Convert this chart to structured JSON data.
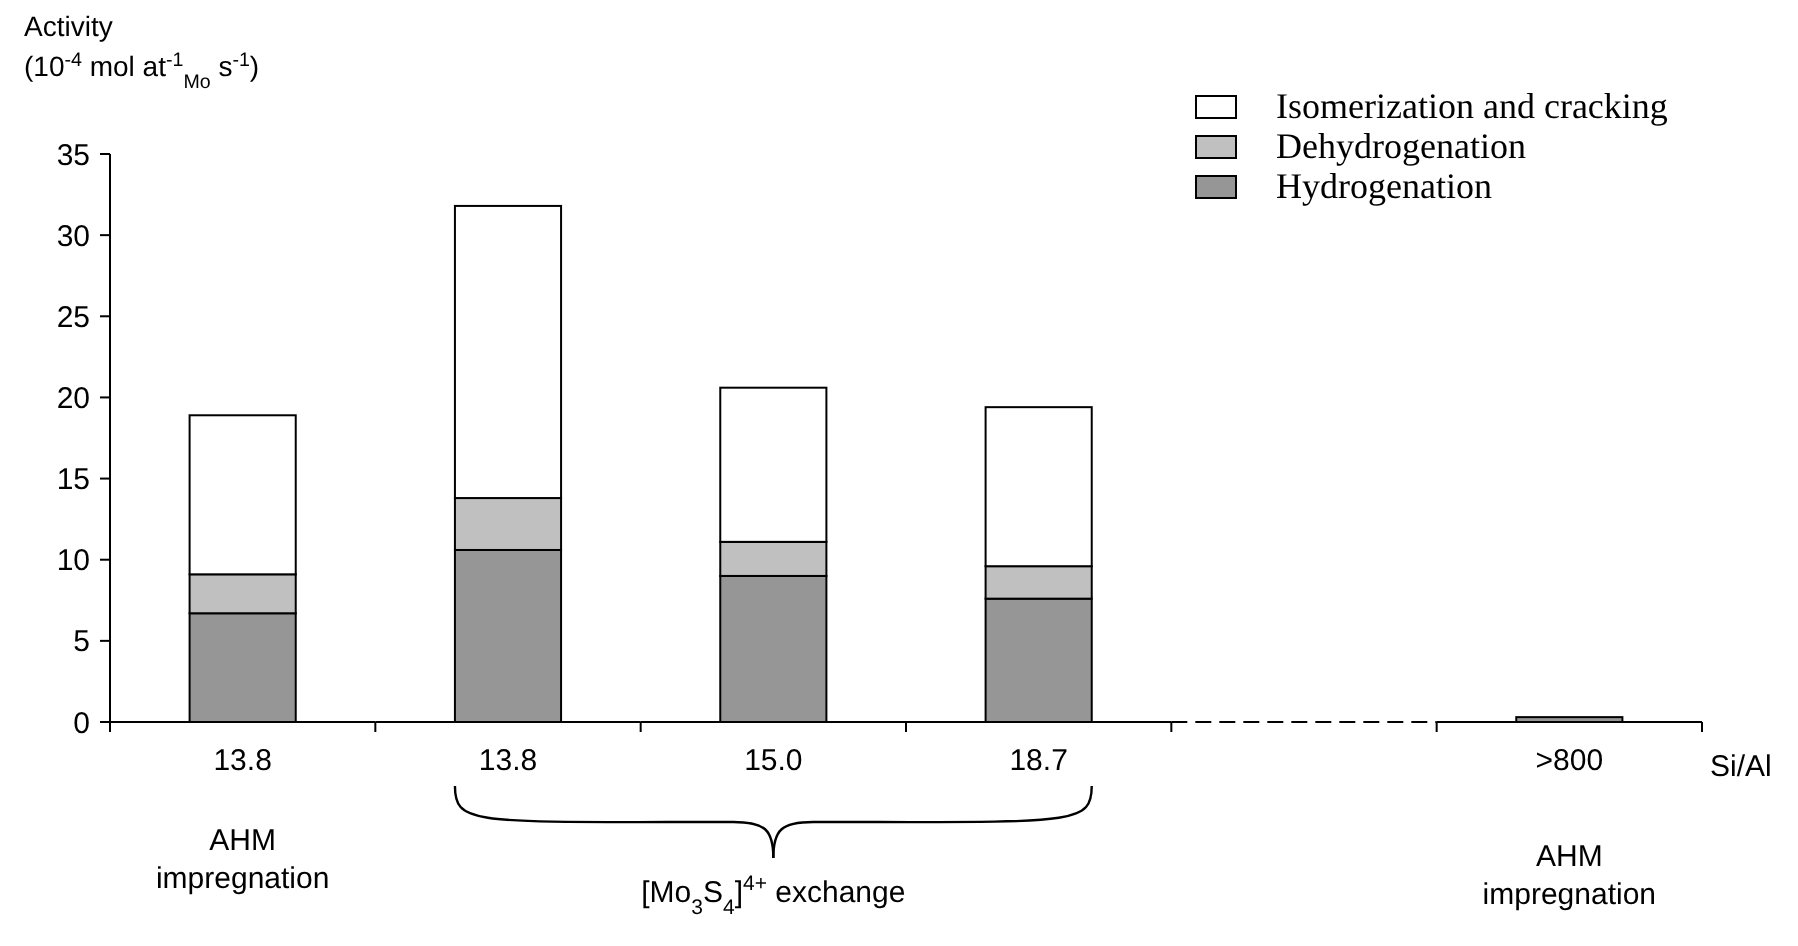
{
  "chart_data": {
    "type": "bar",
    "stacked": true,
    "ylabel": "Activity\n(10$^{-4}$ mol at$^{-1}$$_{Mo}$ s$^{-1}$)",
    "xlabel": "Si/Al",
    "categories": [
      "13.8",
      "13.8",
      "15.0",
      "18.7",
      null,
      ">800"
    ],
    "series": [
      {
        "name": "Hydrogenation",
        "color": "#969696",
        "values": [
          6.7,
          10.6,
          9.0,
          7.6,
          null,
          0.3
        ]
      },
      {
        "name": "Dehydrogenation",
        "color": "#c0c0c0",
        "values": [
          2.4,
          3.2,
          2.1,
          2.0,
          null,
          0
        ]
      },
      {
        "name": "Isomerization and cracking",
        "color": "#ffffff",
        "values": [
          9.8,
          18.0,
          9.5,
          9.8,
          null,
          0
        ]
      }
    ],
    "ylim": [
      0,
      35
    ],
    "yticks": [
      0,
      5,
      10,
      15,
      20,
      25,
      30,
      35
    ],
    "legend": "top right",
    "annotations": [
      "AHM\nimpregnation",
      "[Mo$_{3}$S$_{4}$]$^{4+}$ exchange",
      "AHM\nimpregnation"
    ]
  }
}
